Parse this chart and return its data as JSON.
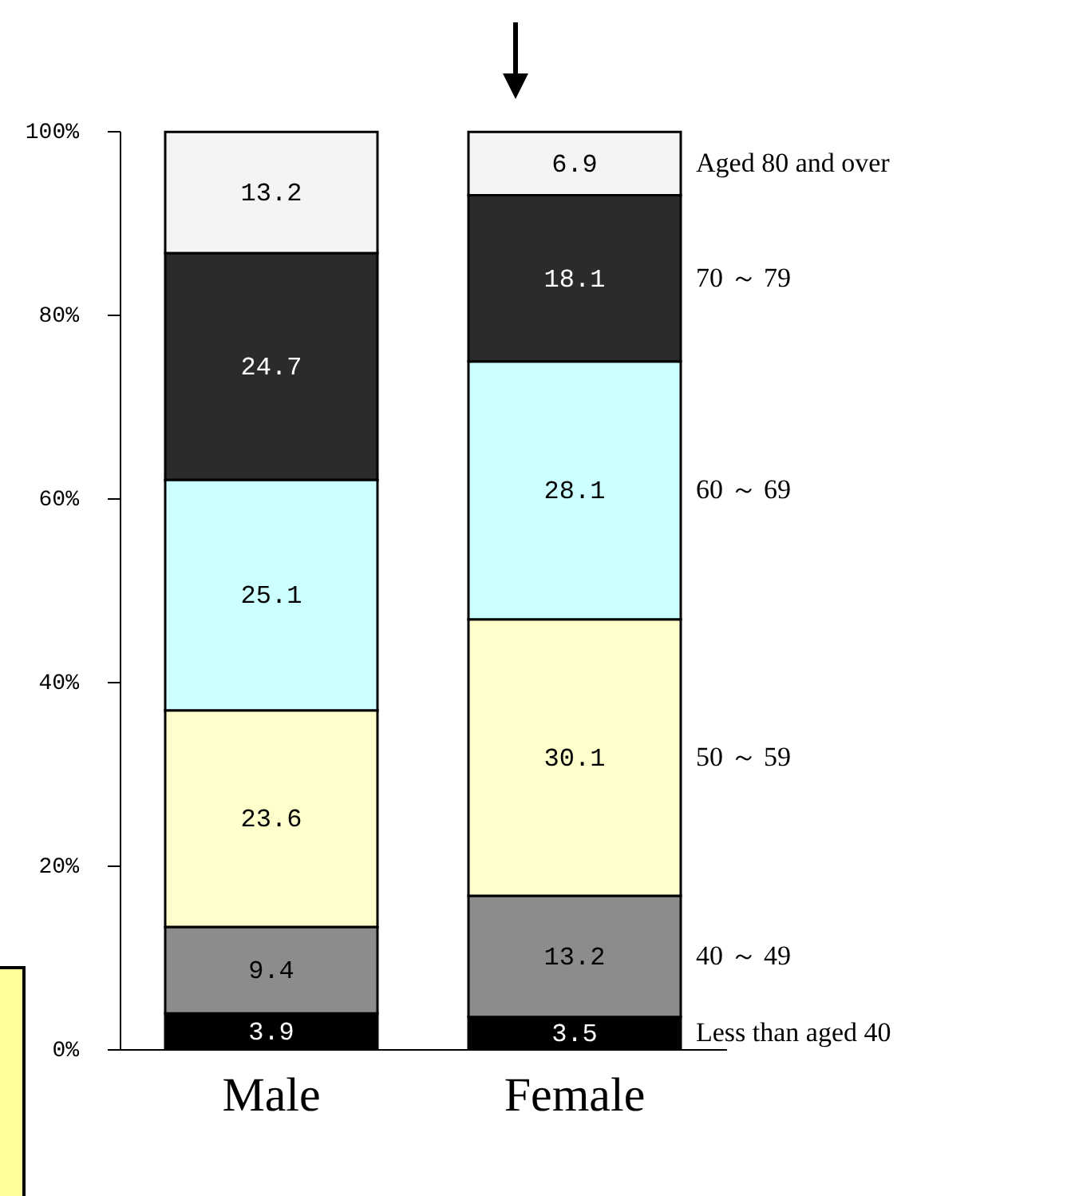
{
  "chart_data": {
    "type": "bar",
    "stacked": true,
    "categories": [
      "Male",
      "Female"
    ],
    "series": [
      {
        "name": "Less than aged 40",
        "color": "#000000",
        "values": [
          3.9,
          3.5
        ]
      },
      {
        "name": "40 ～ 49",
        "color": "#8c8c8c",
        "values": [
          9.4,
          13.2
        ]
      },
      {
        "name": "50 ～ 59",
        "color": "#ffffcc",
        "values": [
          23.6,
          30.1
        ]
      },
      {
        "name": "60 ～ 69",
        "color": "#ccffff",
        "values": [
          25.1,
          28.1
        ]
      },
      {
        "name": "70 ～ 79",
        "color": "#2b2b2b",
        "values": [
          24.7,
          18.1
        ]
      },
      {
        "name": "Aged 80 and over",
        "color": "#f4f4f4",
        "values": [
          13.2,
          6.9
        ]
      }
    ],
    "ylim": [
      0,
      100
    ],
    "yticks": [
      {
        "value": 0,
        "label": "0%"
      },
      {
        "value": 20,
        "label": "20%"
      },
      {
        "value": 40,
        "label": "40%"
      },
      {
        "value": 60,
        "label": "60%"
      },
      {
        "value": 80,
        "label": "80%"
      },
      {
        "value": 100,
        "label": "100%"
      }
    ],
    "data_labels": true,
    "legend": false,
    "grid": false
  }
}
